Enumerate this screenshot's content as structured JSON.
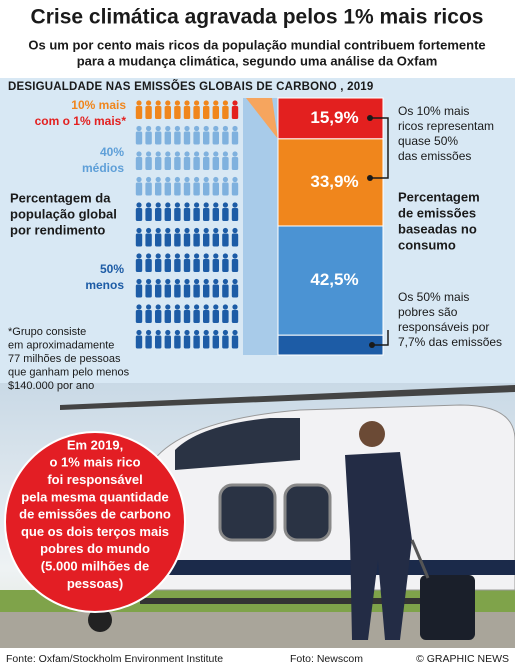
{
  "header": {
    "title": "Crise climática agravada pelos 1% mais ricos",
    "subtitle": [
      "Os um por cento mais ricos da população mundial contribuem fortemente",
      "para a mudança climática, segundo uma análise da Oxfam"
    ]
  },
  "panel": {
    "heading": "DESIGUALDADE NAS EMISSÕES GLOBAIS DE CARBONO , 2019",
    "population": {
      "top": [
        "10% mais",
        "com o 1% mais*"
      ],
      "middle": [
        "40%",
        "médios"
      ],
      "bottom": [
        "50%",
        "menos"
      ],
      "label": [
        "Percentagem da",
        "população global",
        "por rendimento"
      ]
    },
    "footnote": [
      "*Grupo consiste",
      "em aproximadamente",
      "77 milhões de pessoas",
      "que ganham pelo menos",
      "$140.000 por ano"
    ],
    "emissions": {
      "label": [
        "Percentagem",
        "de emissões",
        "baseadas no",
        "consumo"
      ],
      "segments": [
        {
          "label": "15,9%",
          "value": 15.9,
          "color": "#e3201f"
        },
        {
          "label": "33,9%",
          "value": 33.9,
          "color": "#f0861c"
        },
        {
          "label": "42,5%",
          "value": 42.5,
          "color": "#4b93d3"
        },
        {
          "value": 7.7,
          "color": "#1d5ca6"
        }
      ]
    },
    "annotations": {
      "rich": [
        "Os 10% mais",
        "ricos representam",
        "quase 50%",
        "das emissões"
      ],
      "poor": [
        "Os 50% mais",
        "pobres são",
        "responsáveis por",
        "7,7% das emissões"
      ]
    }
  },
  "callout": [
    "Em 2019,",
    "o 1% mais rico",
    "foi responsável",
    "pela mesma quantidade",
    "de emissões de carbono",
    "que os dois terços mais",
    "pobres do mundo",
    "(5.000 milhões de",
    "pessoas)"
  ],
  "footer": {
    "source": "Fonte: Oxfam/Stockholm Environment Institute",
    "photo": "Foto: Newscom",
    "credit": "© GRAPHIC NEWS"
  }
}
